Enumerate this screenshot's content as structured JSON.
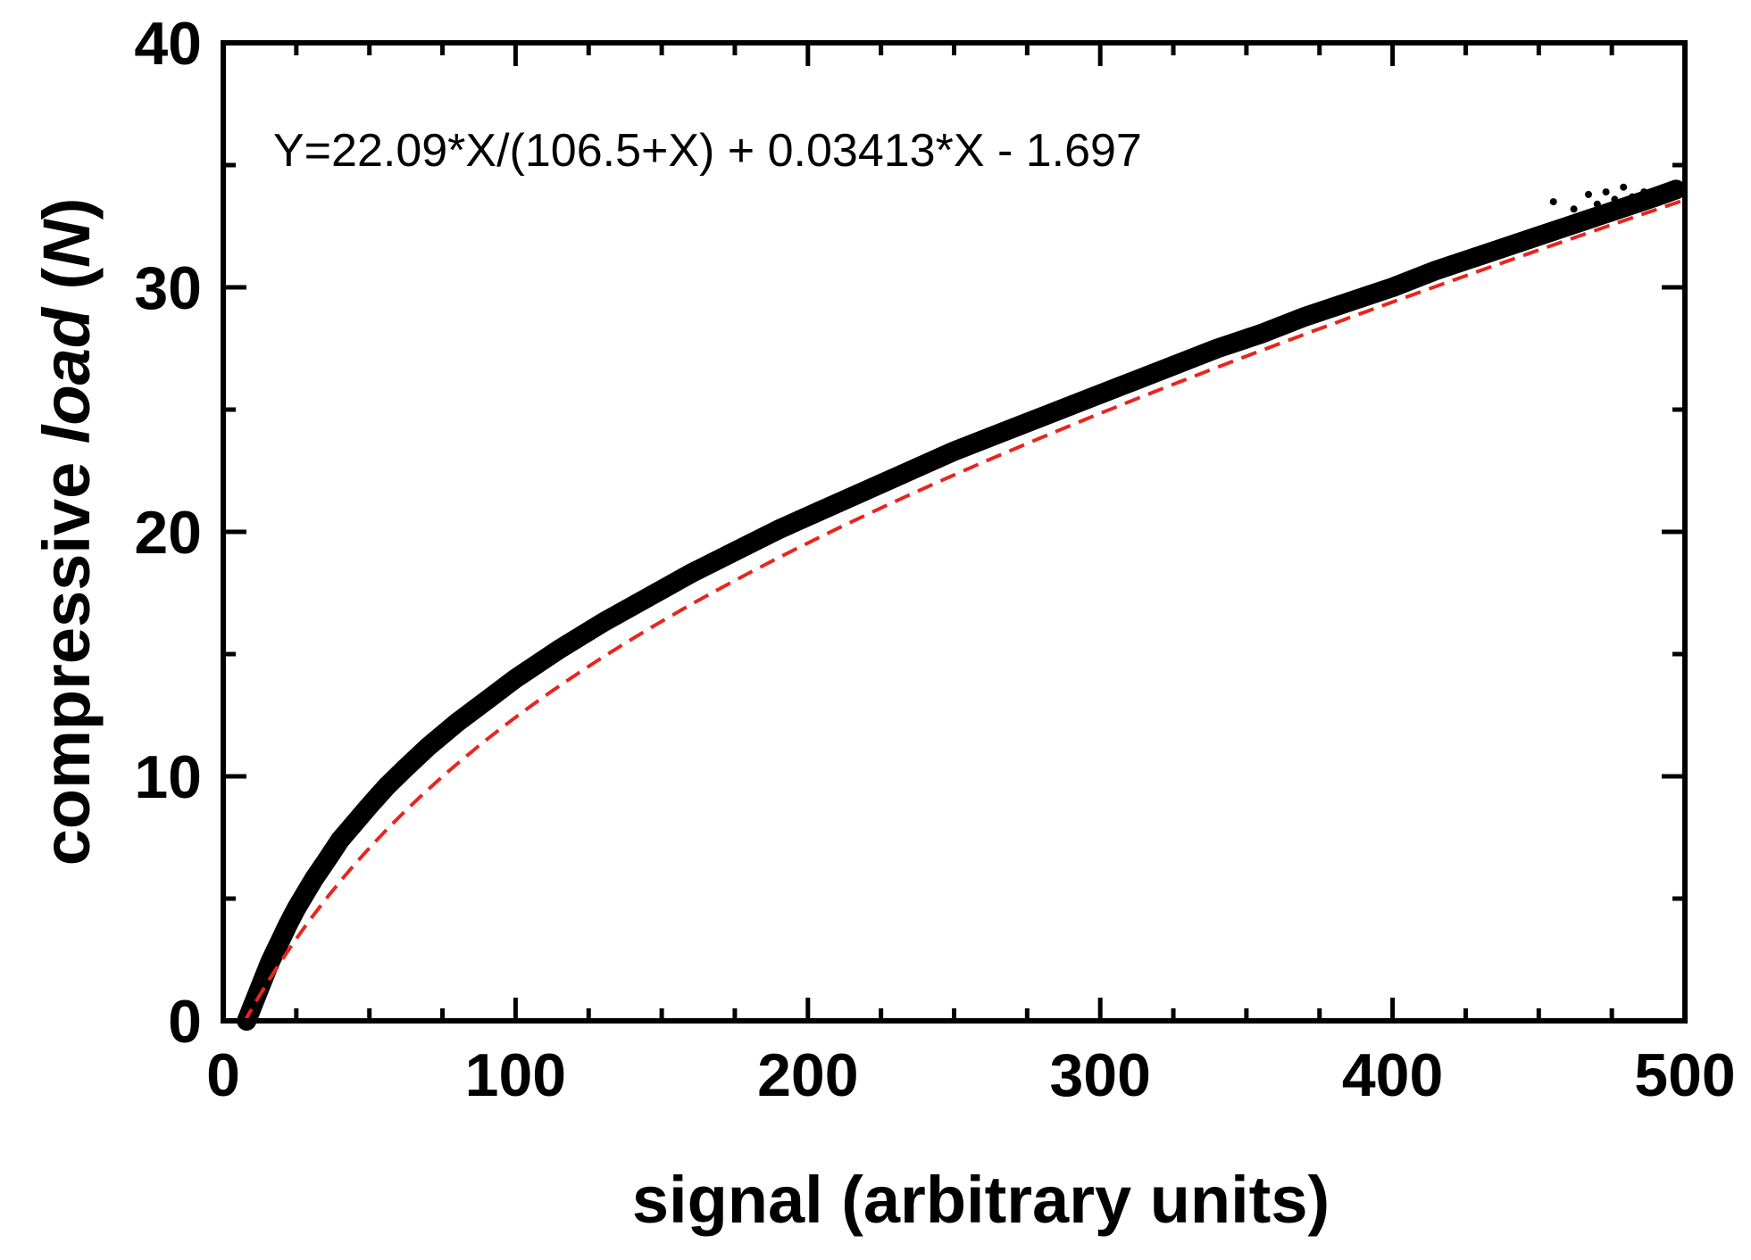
{
  "chart_data": {
    "type": "scatter",
    "title": "",
    "xlabel": "signal (arbitrary units)",
    "ylabel_parts": [
      {
        "text": "compressive ",
        "italic": false
      },
      {
        "text": "load",
        "italic": true
      },
      {
        "text": " (",
        "italic": false
      },
      {
        "text": "N",
        "italic": true
      },
      {
        "text": ")",
        "italic": false
      }
    ],
    "xlim": [
      0,
      500
    ],
    "ylim": [
      0,
      40
    ],
    "x_ticks": [
      "0",
      "100",
      "200",
      "300",
      "400",
      "500"
    ],
    "y_ticks": [
      "0",
      "10",
      "20",
      "30",
      "40"
    ],
    "x_minor_step": 25,
    "y_minor_step": 5,
    "grid": false,
    "annotation": "Y=22.09*X/(106.5+X) + 0.03413*X - 1.697",
    "colors": {
      "data": "#000000",
      "fit": "#e8251f",
      "axis": "#000000"
    },
    "series": [
      {
        "kind": "points",
        "x": [
          8,
          10,
          12,
          14,
          16,
          18,
          20,
          22,
          25,
          28,
          31,
          35,
          40,
          45,
          50,
          56,
          62,
          70,
          80,
          90,
          100,
          115,
          130,
          145,
          160,
          175,
          190,
          205,
          220,
          235,
          250,
          265,
          280,
          295,
          310,
          325,
          340,
          355,
          370,
          385,
          400,
          415,
          430,
          445,
          460,
          470,
          480,
          490,
          497
        ],
        "y": [
          0.0,
          0.6,
          1.2,
          1.8,
          2.4,
          2.9,
          3.4,
          3.9,
          4.6,
          5.2,
          5.8,
          6.5,
          7.4,
          8.1,
          8.8,
          9.6,
          10.3,
          11.2,
          12.2,
          13.1,
          14.0,
          15.2,
          16.3,
          17.3,
          18.3,
          19.2,
          20.1,
          20.9,
          21.7,
          22.5,
          23.3,
          24.0,
          24.7,
          25.4,
          26.1,
          26.8,
          27.5,
          28.1,
          28.8,
          29.4,
          30.0,
          30.7,
          31.3,
          31.9,
          32.5,
          32.9,
          33.3,
          33.7,
          34.0
        ]
      },
      {
        "kind": "outliers",
        "x": [
          455,
          462,
          467,
          470,
          473,
          476,
          479,
          482,
          486,
          490,
          494,
          498
        ],
        "y": [
          33.5,
          33.2,
          33.8,
          33.4,
          33.9,
          33.6,
          34.1,
          33.7,
          33.9,
          33.6,
          34.0,
          33.8
        ]
      }
    ],
    "fit": {
      "a": 22.09,
      "b": 106.5,
      "c": 0.03413,
      "d": -1.697,
      "x_start": 7,
      "x_end": 500
    }
  }
}
